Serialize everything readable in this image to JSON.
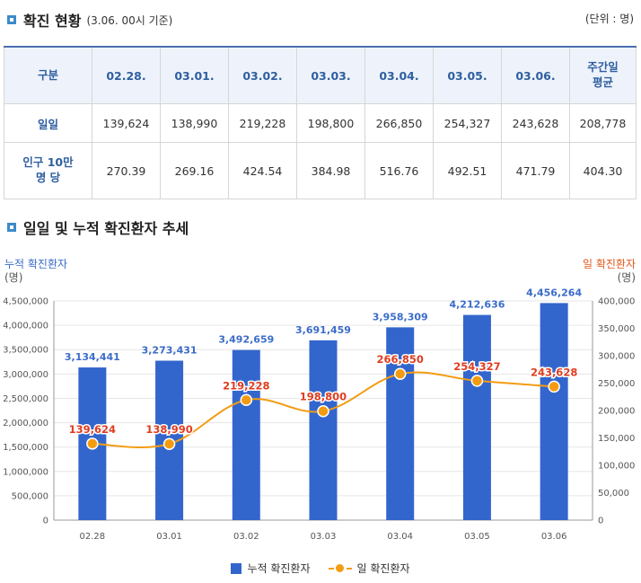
{
  "section1": {
    "title": "확진 현황",
    "subtitle": "(3.06. 00시 기준)",
    "unit": "(단위 : 명)"
  },
  "table": {
    "headers": [
      "구분",
      "02.28.",
      "03.01.",
      "03.02.",
      "03.03.",
      "03.04.",
      "03.05.",
      "03.06.",
      "주간일\n평균"
    ],
    "rows": [
      {
        "label": "일일",
        "values": [
          "139,624",
          "138,990",
          "219,228",
          "198,800",
          "266,850",
          "254,327",
          "243,628",
          "208,778"
        ]
      },
      {
        "label": "인구 10만\n명 당",
        "values": [
          "270.39",
          "269.16",
          "424.54",
          "384.98",
          "516.76",
          "492.51",
          "471.79",
          "404.30"
        ]
      }
    ]
  },
  "section2": {
    "title": "일일 및 누적 확진환자 추세"
  },
  "chart_data": {
    "type": "bar",
    "categories": [
      "02.28",
      "03.01",
      "03.02",
      "03.03",
      "03.04",
      "03.05",
      "03.06"
    ],
    "series": [
      {
        "name": "누적 확진환자",
        "type": "bar",
        "axis": "left",
        "color": "#3366cc",
        "values": [
          3134441,
          3273431,
          3492659,
          3691459,
          3958309,
          4212636,
          4456264
        ],
        "labels": [
          "3,134,441",
          "3,273,431",
          "3,492,659",
          "3,691,459",
          "3,958,309",
          "4,212,636",
          "4,456,264"
        ]
      },
      {
        "name": "일 확진환자",
        "type": "line",
        "axis": "right",
        "color": "#f39c12",
        "values": [
          139624,
          138990,
          219228,
          198800,
          266850,
          254327,
          243628
        ],
        "labels": [
          "139,624",
          "138,990",
          "219,228",
          "198,800",
          "266,850",
          "254,327",
          "243,628"
        ]
      }
    ],
    "left_axis": {
      "title": "누적 확진환자",
      "unit": "(명)",
      "ylim": [
        0,
        4500000
      ],
      "ticks": [
        "0",
        "500,000",
        "1,000,000",
        "1,500,000",
        "2,000,000",
        "2,500,000",
        "3,000,000",
        "3,500,000",
        "4,000,000",
        "4,500,000"
      ]
    },
    "right_axis": {
      "title": "일 확진환자",
      "unit": "(명)",
      "ylim": [
        0,
        400000
      ],
      "ticks": [
        "0",
        "50,000",
        "100,000",
        "150,000",
        "200,000",
        "250,000",
        "300,000",
        "350,000",
        "400,000"
      ]
    },
    "legend": [
      "누적 확진환자",
      "일 확진환자"
    ],
    "grid": true
  }
}
